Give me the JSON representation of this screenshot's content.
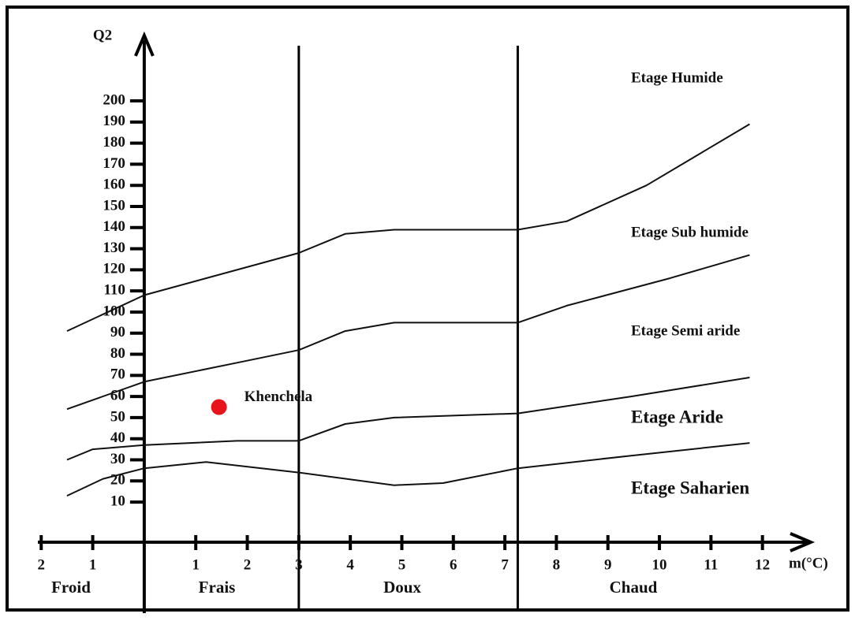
{
  "chart_data": {
    "type": "line",
    "y_label": "Q2",
    "x_label": "m(°C)",
    "xlim": [
      -2.8,
      13
    ],
    "ylim": [
      -9,
      231
    ],
    "xticks": [
      {
        "value": -2,
        "label": "2"
      },
      {
        "value": -1,
        "label": "1"
      },
      1,
      2,
      3,
      4,
      5,
      6,
      7,
      8,
      9,
      10,
      11,
      12
    ],
    "yticks": [
      10,
      20,
      30,
      40,
      50,
      60,
      70,
      80,
      90,
      100,
      110,
      120,
      130,
      140,
      150,
      160,
      170,
      180,
      190,
      200
    ],
    "vlines": [
      3,
      7.25
    ],
    "series": [
      {
        "color": "#111111",
        "x": [
          -1.5,
          0,
          3.0,
          3.9,
          4.85,
          7.25,
          8.2,
          9.75,
          11.75
        ],
        "values": [
          91,
          108,
          128,
          137,
          139,
          139,
          143,
          160,
          189
        ]
      },
      {
        "color": "#111111",
        "x": [
          -1.5,
          0,
          1.8,
          3.0,
          3.9,
          4.85,
          7.25,
          8.2,
          10.2,
          11.75
        ],
        "values": [
          54,
          67,
          76,
          82,
          91,
          95,
          95,
          103,
          116,
          127
        ]
      },
      {
        "color": "#111111",
        "x": [
          -1.5,
          -1.0,
          0,
          1.8,
          3.0,
          3.9,
          4.85,
          7.25,
          9.45,
          11.75
        ],
        "values": [
          30,
          35,
          37,
          39,
          39,
          47,
          50,
          52,
          60,
          69
        ]
      },
      {
        "color": "#111111",
        "x": [
          -1.5,
          -0.8,
          0,
          1.2,
          3.0,
          4.85,
          5.8,
          7.25,
          9.45,
          11.75
        ],
        "values": [
          13,
          21,
          26,
          29,
          24,
          18,
          19,
          26,
          32,
          38
        ]
      }
    ],
    "point": {
      "name": "Khenchela",
      "x": 1.45,
      "y": 55,
      "color": "#e8141b"
    },
    "stages": [
      "Etage Humide",
      "Etage Sub humide",
      "Etage Semi aride",
      "Etage Aride",
      "Etage Saharien"
    ],
    "zones": [
      "Froid",
      "Frais",
      "Doux",
      "Chaud"
    ]
  }
}
